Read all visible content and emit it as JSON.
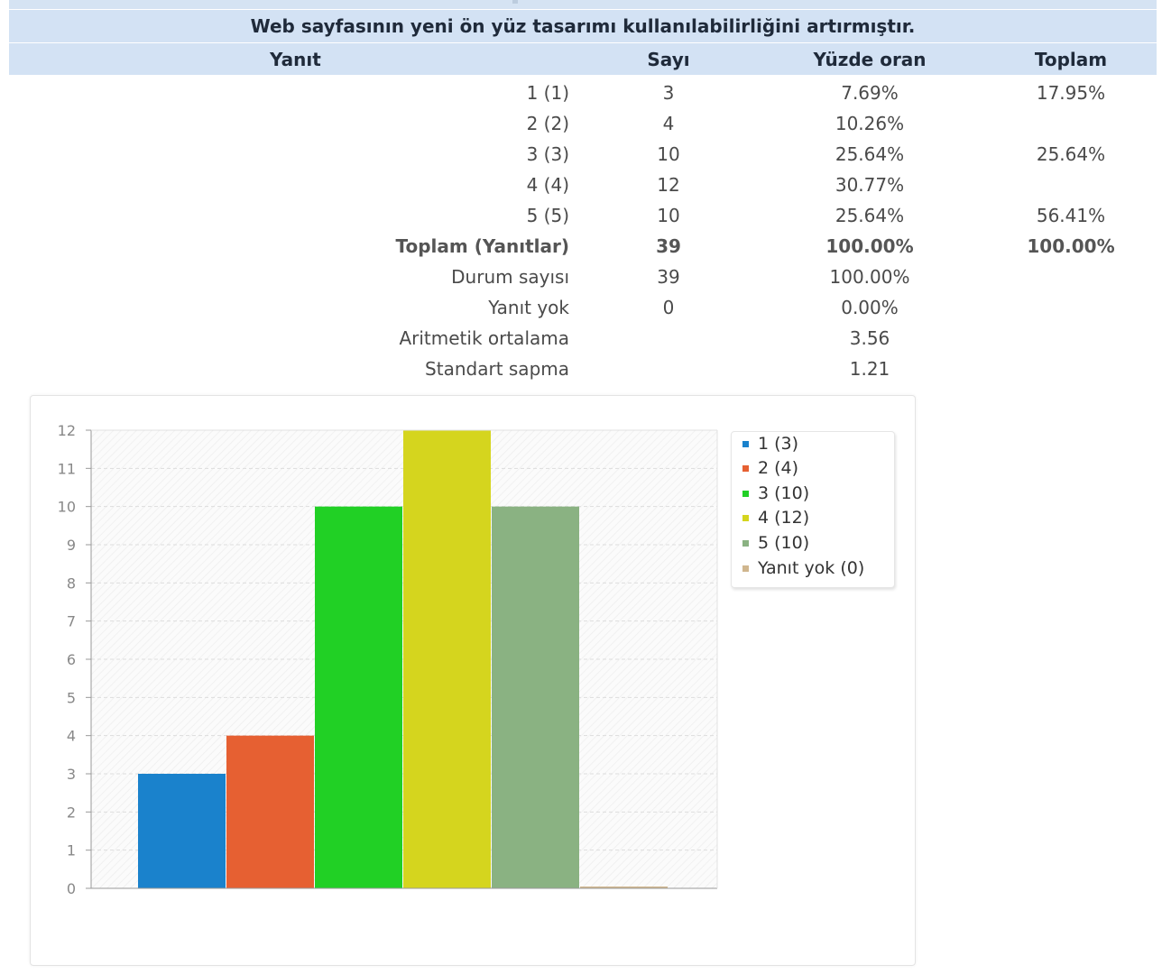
{
  "question": "Web sayfasının yeni ön yüz tasarımı kullanılabilirliğini artırmıştır.",
  "columns": {
    "yanit": "Yanıt",
    "sayi": "Sayı",
    "yuzde": "Yüzde oran",
    "toplam": "Toplam"
  },
  "rows": [
    {
      "label": "1 (1)",
      "sayi": "3",
      "yuzde": "7.69%",
      "toplam": "17.95%"
    },
    {
      "label": "2 (2)",
      "sayi": "4",
      "yuzde": "10.26%",
      "toplam": ""
    },
    {
      "label": "3 (3)",
      "sayi": "10",
      "yuzde": "25.64%",
      "toplam": "25.64%"
    },
    {
      "label": "4 (4)",
      "sayi": "12",
      "yuzde": "30.77%",
      "toplam": ""
    },
    {
      "label": "5 (5)",
      "sayi": "10",
      "yuzde": "25.64%",
      "toplam": "56.41%"
    }
  ],
  "total_row": {
    "label": "Toplam (Yanıtlar)",
    "sayi": "39",
    "yuzde": "100.00%",
    "toplam": "100.00%"
  },
  "summary": [
    {
      "label": "Durum sayısı",
      "sayi": "39",
      "yuzde": "100.00%"
    },
    {
      "label": "Yanıt yok",
      "sayi": "0",
      "yuzde": "0.00%"
    },
    {
      "label": "Aritmetik ortalama",
      "sayi": "",
      "yuzde": "3.56"
    },
    {
      "label": "Standart sapma",
      "sayi": "",
      "yuzde": "1.21"
    }
  ],
  "chart_data": {
    "type": "bar",
    "categories": [
      "1 (3)",
      "2 (4)",
      "3 (10)",
      "4 (12)",
      "5 (10)",
      "Yanıt yok (0)"
    ],
    "values": [
      3,
      4,
      10,
      12,
      10,
      0
    ],
    "colors": [
      "#1a82cc",
      "#e66032",
      "#21d025",
      "#d5d51e",
      "#8ab282",
      "#d0b68e"
    ],
    "ylim": [
      0,
      12
    ],
    "yticks": [
      "0",
      "1",
      "2",
      "3",
      "4",
      "5",
      "6",
      "7",
      "8",
      "9",
      "10",
      "11",
      "12"
    ],
    "grid": true,
    "legend": [
      {
        "label": "1 (3)",
        "color": "#1a82cc"
      },
      {
        "label": "2 (4)",
        "color": "#e66032"
      },
      {
        "label": "3 (10)",
        "color": "#21d025"
      },
      {
        "label": "4 (12)",
        "color": "#d5d51e"
      },
      {
        "label": "5 (10)",
        "color": "#8ab282"
      },
      {
        "label": "Yanıt yok (0)",
        "color": "#d0b68e"
      }
    ],
    "legend_position": "top-right"
  }
}
